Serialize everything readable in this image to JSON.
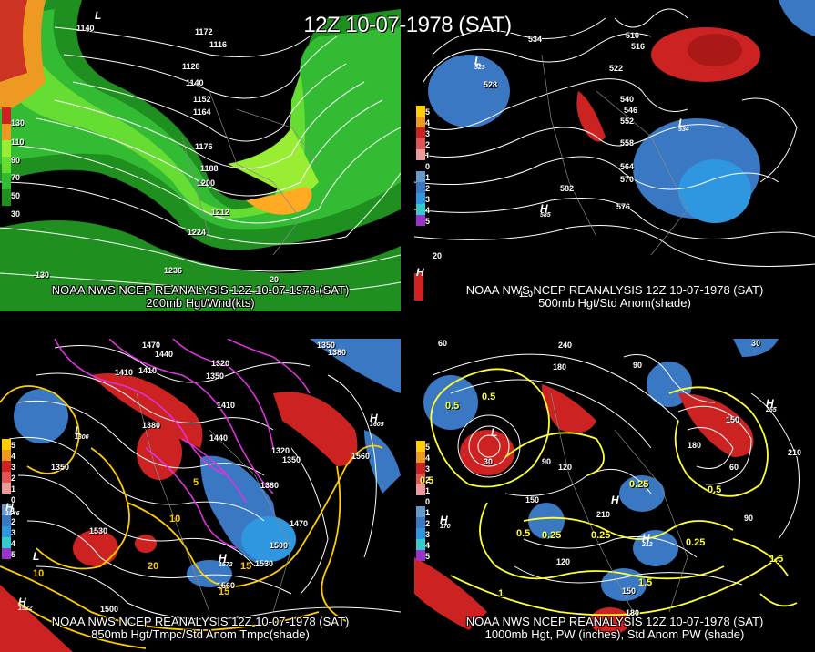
{
  "header": {
    "title": "12Z 10-07-1978 (SAT)"
  },
  "colors": {
    "background": "#000000",
    "jet": "#33cc33",
    "anom_pos": "#cc2222",
    "anom_neg": "#3377cc",
    "temp": "#ffcc00",
    "pw": "#ffff33",
    "mag": "#dd33dd"
  },
  "panels": [
    {
      "id": "p200",
      "caption_line1": "NOAA NWS NCEP REANALYSIS 12Z 10-07-1978 (SAT)",
      "caption_line2": "200mb Hgt/Wnd(kts)",
      "colorbar": [
        "130",
        "110",
        "90",
        "70",
        "50",
        "30"
      ],
      "contour_labels": [
        "1140",
        "1116",
        "1128",
        "1140",
        "1152",
        "1164",
        "1176",
        "1188",
        "1200",
        "1212",
        "1224",
        "1236",
        "1172"
      ],
      "pressure_centers": [
        {
          "letter": "L",
          "value": ""
        }
      ],
      "lon_labels": [
        "-130",
        "20"
      ]
    },
    {
      "id": "p500",
      "caption_line1": "NOAA NWS NCEP REANALYSIS 12Z 10-07-1978 (SAT)",
      "caption_line2": "500mb Hgt/Std Anom(shade)",
      "colorbar": [
        "5",
        "4",
        "3",
        "2",
        "1",
        "0",
        "1",
        "2",
        "3",
        "4",
        "5"
      ],
      "contour_labels": [
        "534",
        "528",
        "510",
        "516",
        "522",
        "540",
        "546",
        "552",
        "558",
        "564",
        "570",
        "576",
        "582"
      ],
      "pressure_centers": [
        {
          "letter": "L",
          "value": "523"
        },
        {
          "letter": "L",
          "value": "534"
        },
        {
          "letter": "H",
          "value": "585"
        },
        {
          "letter": "H",
          "value": ""
        }
      ],
      "lon_labels": [
        "-120",
        "20"
      ]
    },
    {
      "id": "p850",
      "caption_line1": "NOAA NWS NCEP REANALYSIS 12Z 10-07-1978 (SAT)",
      "caption_line2": "850mb Hgt/Tmpc/Std Anom Tmpc(shade)",
      "colorbar": [
        "5",
        "4",
        "3",
        "2",
        "1",
        "0",
        "1",
        "2",
        "3",
        "4",
        "5"
      ],
      "contour_labels": [
        "1470",
        "1440",
        "1410",
        "1320",
        "1350",
        "1380",
        "1410",
        "1440",
        "1320",
        "1350",
        "1380",
        "1470",
        "1500",
        "1530",
        "1560",
        "1530",
        "1500",
        "1350",
        "1560",
        "1410",
        "1350",
        "1380"
      ],
      "temp_labels": [
        "10",
        "15",
        "20",
        "5",
        "10",
        "15"
      ],
      "pressure_centers": [
        {
          "letter": "L",
          "value": "1300"
        },
        {
          "letter": "H",
          "value": "1605"
        },
        {
          "letter": "H",
          "value": "1572"
        },
        {
          "letter": "L",
          "value": ""
        },
        {
          "letter": "H",
          "value": "1522"
        },
        {
          "letter": "H",
          "value": "1546"
        }
      ],
      "lon_labels": []
    },
    {
      "id": "p1000",
      "caption_line1": "NOAA NWS NCEP REANALYSIS 12Z 10-07-1978 (SAT)",
      "caption_line2": "1000mb Hgt, PW (inches), Std Anom PW (shade)",
      "colorbar": [
        "5",
        "4",
        "3",
        "2",
        "1",
        "0",
        "1",
        "2",
        "3",
        "4",
        "5"
      ],
      "contour_labels": [
        "60",
        "240",
        "180",
        "90",
        "120",
        "150",
        "210",
        "90",
        "60",
        "30",
        "150",
        "210",
        "180",
        "120",
        "150",
        "180",
        "90",
        "30"
      ],
      "pw_labels": [
        "0.5",
        "0.5",
        "0.25",
        "0.25",
        "0.25",
        "0.5",
        "0.25",
        "0.5",
        "1.5",
        "1",
        "1.5",
        "0.5"
      ],
      "pressure_centers": [
        {
          "letter": "L",
          "value": ""
        },
        {
          "letter": "H",
          "value": "255"
        },
        {
          "letter": "H",
          "value": "170"
        },
        {
          "letter": "H",
          "value": "212"
        },
        {
          "letter": "H",
          "value": ""
        }
      ],
      "lon_labels": []
    }
  ]
}
